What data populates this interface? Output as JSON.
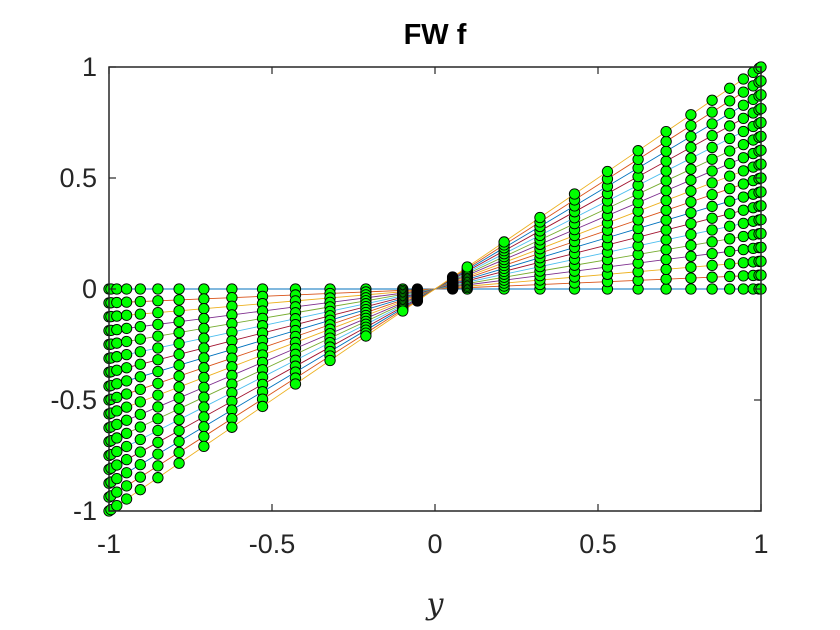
{
  "chart_data": {
    "type": "line",
    "title": "FW f",
    "xlabel": "y",
    "ylabel": "",
    "xlim": [
      -1,
      1
    ],
    "ylim": [
      -1,
      1
    ],
    "xticks": [
      -1,
      -0.5,
      0,
      0.5,
      1
    ],
    "yticks": [
      -1,
      -0.5,
      0,
      0.5,
      1
    ],
    "xtick_labels": [
      "-1",
      "-0.5",
      "0",
      "0.5",
      "1"
    ],
    "ytick_labels": [
      "-1",
      "-0.5",
      "0",
      "0.5",
      "1"
    ],
    "grid": false,
    "box": true,
    "marker": "circle",
    "marker_color": "#00ff00",
    "marker_edge_color": "#000000",
    "highlight_marker_color": "#000000",
    "x": [
      -1,
      -0.994,
      -0.976,
      -0.946,
      -0.904,
      -0.85,
      -0.785,
      -0.709,
      -0.623,
      -0.529,
      -0.428,
      -0.322,
      -0.212,
      -0.099,
      0.099,
      0.212,
      0.322,
      0.428,
      0.529,
      0.623,
      0.709,
      0.785,
      0.85,
      0.904,
      0.946,
      0.976,
      0.994,
      1
    ],
    "highlight_x": [
      -0.054,
      0.054
    ],
    "series_slopes": [
      0,
      0.0625,
      0.125,
      0.1875,
      0.25,
      0.3125,
      0.375,
      0.4375,
      0.5,
      0.5625,
      0.625,
      0.6875,
      0.75,
      0.8125,
      0.875,
      0.9375,
      1
    ],
    "series_colors": [
      "#0072bd",
      "#d95319",
      "#edb120",
      "#7e2f8e",
      "#77ac30",
      "#4dbeee",
      "#a2142f"
    ],
    "series_rule": "y = slope * x for x >= 0; y = -slope * |x| for x < 0"
  }
}
